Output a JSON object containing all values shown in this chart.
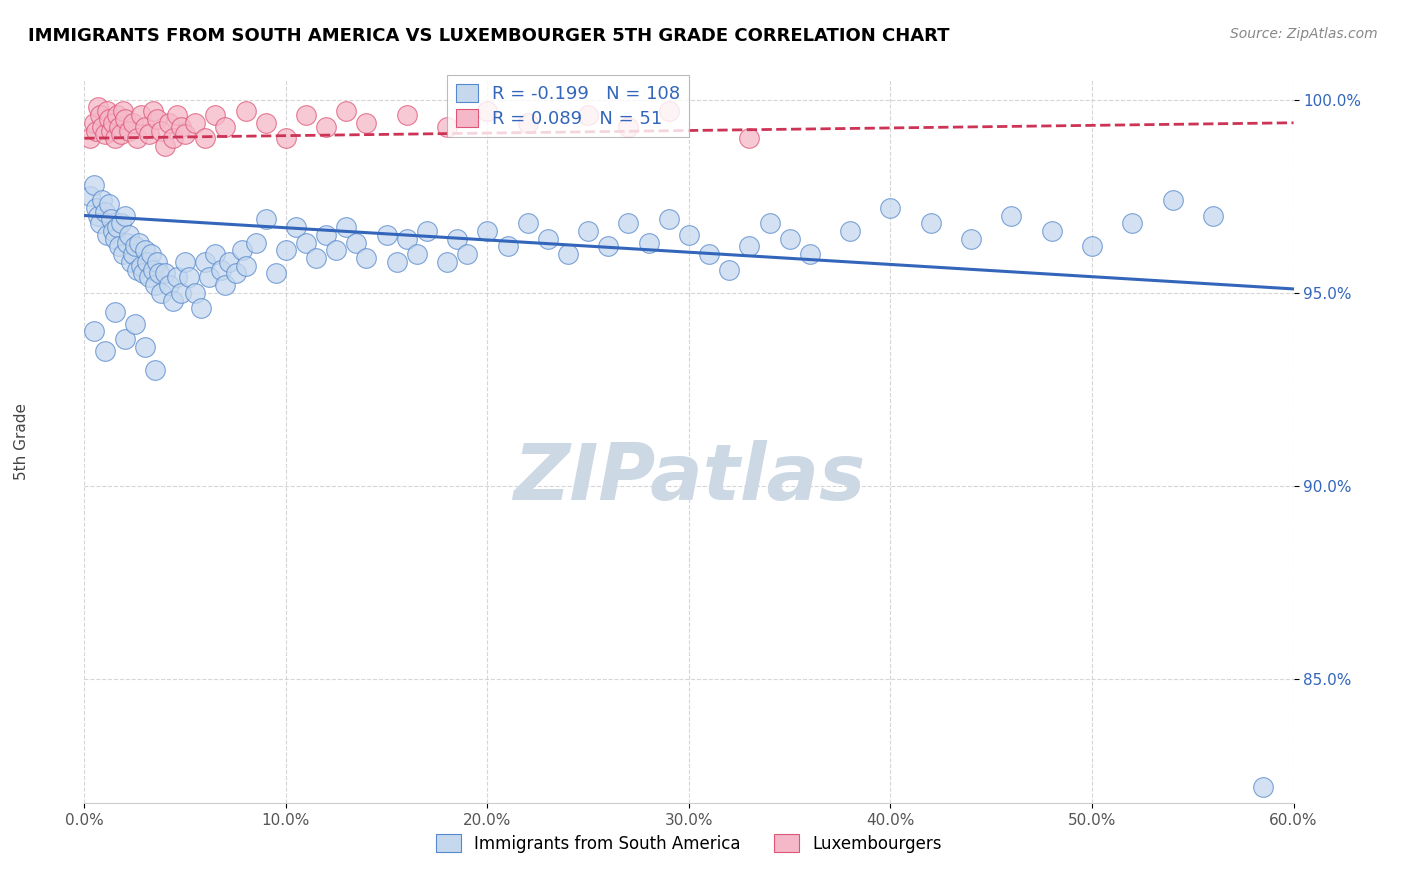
{
  "title": "IMMIGRANTS FROM SOUTH AMERICA VS LUXEMBOURGER 5TH GRADE CORRELATION CHART",
  "source": "Source: ZipAtlas.com",
  "xlabel_blue": "Immigrants from South America",
  "xlabel_pink": "Luxembourgers",
  "ylabel": "5th Grade",
  "xlim": [
    0.0,
    0.6
  ],
  "ylim": [
    0.818,
    1.005
  ],
  "yticks": [
    0.85,
    0.9,
    0.95,
    1.0
  ],
  "ytick_labels": [
    "85.0%",
    "90.0%",
    "95.0%",
    "100.0%"
  ],
  "xticks": [
    0.0,
    0.1,
    0.2,
    0.3,
    0.4,
    0.5,
    0.6
  ],
  "xtick_labels": [
    "0.0%",
    "10.0%",
    "20.0%",
    "30.0%",
    "40.0%",
    "50.0%",
    "60.0%"
  ],
  "legend_R_blue": "-0.199",
  "legend_N_blue": "108",
  "legend_R_pink": "0.089",
  "legend_N_pink": "51",
  "blue_fill": "#c5d8ee",
  "blue_edge": "#5588cc",
  "pink_fill": "#f5b8c8",
  "pink_edge": "#dd5577",
  "trend_blue_color": "#3366bb",
  "trend_pink_color": "#cc3355",
  "grid_color": "#cccccc",
  "watermark": "ZIPatlas",
  "watermark_color": "#ccd8e4",
  "blue_x": [
    0.003,
    0.005,
    0.006,
    0.007,
    0.008,
    0.009,
    0.01,
    0.011,
    0.012,
    0.013,
    0.014,
    0.015,
    0.016,
    0.017,
    0.018,
    0.019,
    0.02,
    0.021,
    0.022,
    0.023,
    0.024,
    0.025,
    0.026,
    0.027,
    0.028,
    0.029,
    0.03,
    0.031,
    0.032,
    0.033,
    0.034,
    0.035,
    0.036,
    0.037,
    0.038,
    0.04,
    0.042,
    0.044,
    0.046,
    0.048,
    0.05,
    0.052,
    0.055,
    0.058,
    0.06,
    0.062,
    0.065,
    0.068,
    0.07,
    0.072,
    0.075,
    0.078,
    0.08,
    0.085,
    0.09,
    0.095,
    0.1,
    0.105,
    0.11,
    0.115,
    0.12,
    0.125,
    0.13,
    0.135,
    0.14,
    0.15,
    0.155,
    0.16,
    0.165,
    0.17,
    0.18,
    0.185,
    0.19,
    0.2,
    0.21,
    0.22,
    0.23,
    0.24,
    0.25,
    0.26,
    0.27,
    0.28,
    0.29,
    0.3,
    0.31,
    0.32,
    0.33,
    0.34,
    0.35,
    0.36,
    0.38,
    0.4,
    0.42,
    0.44,
    0.46,
    0.48,
    0.5,
    0.52,
    0.54,
    0.56,
    0.005,
    0.01,
    0.015,
    0.02,
    0.025,
    0.03,
    0.035,
    0.585
  ],
  "blue_y": [
    0.975,
    0.978,
    0.972,
    0.97,
    0.968,
    0.974,
    0.971,
    0.965,
    0.973,
    0.969,
    0.966,
    0.964,
    0.967,
    0.962,
    0.968,
    0.96,
    0.97,
    0.963,
    0.965,
    0.958,
    0.96,
    0.962,
    0.956,
    0.963,
    0.957,
    0.955,
    0.961,
    0.958,
    0.954,
    0.96,
    0.956,
    0.952,
    0.958,
    0.955,
    0.95,
    0.955,
    0.952,
    0.948,
    0.954,
    0.95,
    0.958,
    0.954,
    0.95,
    0.946,
    0.958,
    0.954,
    0.96,
    0.956,
    0.952,
    0.958,
    0.955,
    0.961,
    0.957,
    0.963,
    0.969,
    0.955,
    0.961,
    0.967,
    0.963,
    0.959,
    0.965,
    0.961,
    0.967,
    0.963,
    0.959,
    0.965,
    0.958,
    0.964,
    0.96,
    0.966,
    0.958,
    0.964,
    0.96,
    0.966,
    0.962,
    0.968,
    0.964,
    0.96,
    0.966,
    0.962,
    0.968,
    0.963,
    0.969,
    0.965,
    0.96,
    0.956,
    0.962,
    0.968,
    0.964,
    0.96,
    0.966,
    0.972,
    0.968,
    0.964,
    0.97,
    0.966,
    0.962,
    0.968,
    0.974,
    0.97,
    0.94,
    0.935,
    0.945,
    0.938,
    0.942,
    0.936,
    0.93,
    0.822
  ],
  "pink_x": [
    0.003,
    0.005,
    0.006,
    0.007,
    0.008,
    0.009,
    0.01,
    0.011,
    0.012,
    0.013,
    0.014,
    0.015,
    0.016,
    0.017,
    0.018,
    0.019,
    0.02,
    0.022,
    0.024,
    0.026,
    0.028,
    0.03,
    0.032,
    0.034,
    0.036,
    0.038,
    0.04,
    0.042,
    0.044,
    0.046,
    0.048,
    0.05,
    0.055,
    0.06,
    0.065,
    0.07,
    0.08,
    0.09,
    0.1,
    0.11,
    0.12,
    0.13,
    0.14,
    0.16,
    0.18,
    0.2,
    0.22,
    0.25,
    0.27,
    0.29,
    0.33
  ],
  "pink_y": [
    0.99,
    0.994,
    0.992,
    0.998,
    0.996,
    0.993,
    0.991,
    0.997,
    0.995,
    0.992,
    0.994,
    0.99,
    0.996,
    0.993,
    0.991,
    0.997,
    0.995,
    0.992,
    0.994,
    0.99,
    0.996,
    0.993,
    0.991,
    0.997,
    0.995,
    0.992,
    0.988,
    0.994,
    0.99,
    0.996,
    0.993,
    0.991,
    0.994,
    0.99,
    0.996,
    0.993,
    0.997,
    0.994,
    0.99,
    0.996,
    0.993,
    0.997,
    0.994,
    0.996,
    0.993,
    0.997,
    0.994,
    0.996,
    0.993,
    0.997,
    0.99
  ],
  "blue_trend_x0": 0.0,
  "blue_trend_x1": 0.6,
  "blue_trend_y0": 0.97,
  "blue_trend_y1": 0.951,
  "pink_trend_x0": 0.0,
  "pink_trend_x1": 0.6,
  "pink_trend_y0": 0.99,
  "pink_trend_y1": 0.994
}
